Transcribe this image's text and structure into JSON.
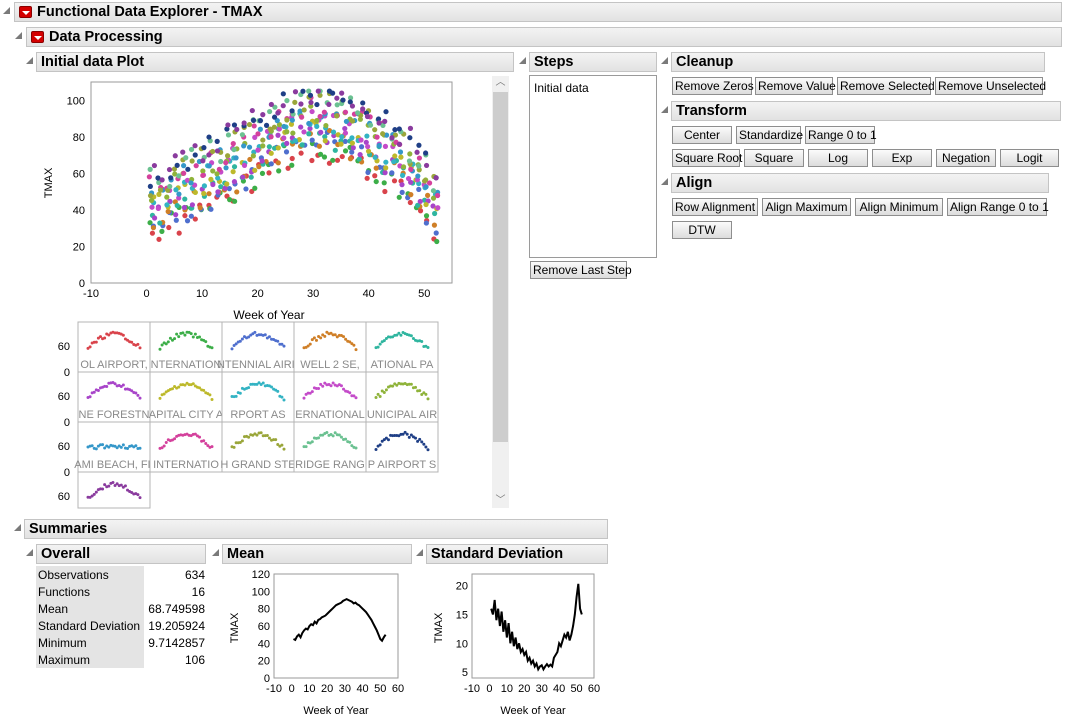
{
  "window": {
    "title": "Functional Data Explorer - TMAX"
  },
  "data_processing": {
    "title": "Data Processing"
  },
  "initial_plot": {
    "title": "Initial data Plot",
    "xlabel": "Week of Year",
    "ylabel": "TMAX",
    "x_ticks": [
      "-10",
      "0",
      "10",
      "20",
      "30",
      "40",
      "50"
    ],
    "y_ticks": [
      "0",
      "20",
      "40",
      "60",
      "80",
      "100"
    ],
    "small_tick_top": "60",
    "small_tick_bottom": "0",
    "small_panels": [
      {
        "label": "OL AIRPORT,",
        "color": "#d9434b"
      },
      {
        "label": "NTERNATION",
        "color": "#3cae48"
      },
      {
        "label": "NTENNIAL AIRP",
        "color": "#4f6fce"
      },
      {
        "label": "WELL 2 SE,",
        "color": "#cf7f27"
      },
      {
        "label": "ATIONAL PA",
        "color": "#2fb59f"
      },
      {
        "label": "NE FORESTN",
        "color": "#a844c9"
      },
      {
        "label": "APITAL CITY A",
        "color": "#bdb92b"
      },
      {
        "label": "RPORT AS",
        "color": "#33b3c3"
      },
      {
        "label": "ERNATIONAL",
        "color": "#c44bc9"
      },
      {
        "label": "UNICIPAL AIR",
        "color": "#8fb33a"
      },
      {
        "label": "AMI BEACH, FL",
        "color": "#3597c9"
      },
      {
        "label": "INTERNATIO",
        "color": "#d4419c"
      },
      {
        "label": "H GRAND STE",
        "color": "#9aa63a"
      },
      {
        "label": "RIDGE RANG",
        "color": "#6bc191"
      },
      {
        "label": "P AIRPORT S",
        "color": "#1f3f86"
      },
      {
        "label": "",
        "color": "#8a3b9e"
      }
    ]
  },
  "steps": {
    "title": "Steps",
    "items": [
      "Initial data"
    ],
    "remove_last_step": "Remove Last Step"
  },
  "cleanup": {
    "title": "Cleanup",
    "buttons": [
      "Remove Zeros",
      "Remove Value",
      "Remove Selected",
      "Remove Unselected"
    ]
  },
  "transform": {
    "title": "Transform",
    "row1": [
      "Center",
      "Standardize",
      "Range 0 to 1"
    ],
    "row2": [
      "Square Root",
      "Square",
      "Log",
      "Exp",
      "Negation",
      "Logit"
    ]
  },
  "align": {
    "title": "Align",
    "buttons": [
      "Row Alignment",
      "Align Maximum",
      "Align Minimum",
      "Align Range 0 to 1",
      "DTW"
    ]
  },
  "summaries": {
    "title": "Summaries",
    "overall": {
      "title": "Overall",
      "rows": [
        {
          "k": "Observations",
          "v": "634"
        },
        {
          "k": "Functions",
          "v": "16"
        },
        {
          "k": "Mean",
          "v": "68.749598"
        },
        {
          "k": "Standard Deviation",
          "v": "19.205924"
        },
        {
          "k": "Minimum",
          "v": "9.7142857"
        },
        {
          "k": "Maximum",
          "v": "106"
        }
      ]
    },
    "mean": {
      "title": "Mean",
      "xlabel": "Week of Year",
      "ylabel": "TMAX",
      "x_ticks": [
        "-10",
        "0",
        "10",
        "20",
        "30",
        "40",
        "50",
        "60"
      ],
      "y_ticks": [
        "0",
        "20",
        "40",
        "60",
        "80",
        "100",
        "120"
      ]
    },
    "std": {
      "title": "Standard Deviation",
      "xlabel": "Week of Year",
      "ylabel": "TMAX",
      "x_ticks": [
        "-10",
        "0",
        "10",
        "20",
        "30",
        "40",
        "50",
        "60"
      ],
      "y_ticks": [
        "5",
        "10",
        "15",
        "20"
      ]
    }
  },
  "chart_data": [
    {
      "type": "scatter",
      "xlabel": "Week of Year",
      "ylabel": "TMAX",
      "xlim": [
        -10,
        55
      ],
      "ylim": [
        0,
        110
      ],
      "series": [
        {
          "name": "",
          "x": [
            1,
            5,
            10,
            15,
            20,
            25,
            30,
            35,
            40,
            45,
            50,
            52
          ],
          "y": [
            45,
            50,
            58,
            65,
            75,
            85,
            90,
            88,
            80,
            70,
            55,
            45
          ]
        }
      ]
    },
    {
      "type": "line",
      "xlabel": "Week of Year",
      "ylabel": "TMAX",
      "xlim": [
        -10,
        60
      ],
      "ylim": [
        0,
        120
      ],
      "x": [
        1,
        2,
        3,
        4,
        5,
        6,
        7,
        8,
        9,
        10,
        11,
        12,
        13,
        14,
        15,
        16,
        17,
        18,
        19,
        20,
        21,
        22,
        23,
        24,
        25,
        26,
        27,
        28,
        29,
        30,
        31,
        32,
        33,
        34,
        35,
        36,
        37,
        38,
        39,
        40,
        41,
        42,
        43,
        44,
        45,
        46,
        47,
        48,
        49,
        50,
        51,
        52,
        53
      ],
      "values": [
        45,
        44,
        48,
        50,
        47,
        52,
        55,
        57,
        56,
        60,
        62,
        61,
        65,
        63,
        67,
        68,
        70,
        71,
        72,
        74,
        76,
        78,
        80,
        82,
        84,
        85,
        86,
        87,
        89,
        90,
        91,
        90,
        89,
        88,
        86,
        87,
        85,
        84,
        82,
        80,
        78,
        76,
        73,
        70,
        67,
        63,
        59,
        55,
        50,
        45,
        43,
        47,
        50
      ]
    },
    {
      "type": "line",
      "xlabel": "Week of Year",
      "ylabel": "TMAX",
      "xlim": [
        -10,
        60
      ],
      "ylim": [
        4,
        22
      ],
      "x": [
        1,
        2,
        3,
        4,
        5,
        6,
        7,
        8,
        9,
        10,
        11,
        12,
        13,
        14,
        15,
        16,
        17,
        18,
        19,
        20,
        21,
        22,
        23,
        24,
        25,
        26,
        27,
        28,
        29,
        30,
        31,
        32,
        33,
        34,
        35,
        36,
        37,
        38,
        39,
        40,
        41,
        42,
        43,
        44,
        45,
        46,
        47,
        48,
        49,
        50,
        51,
        52,
        53
      ],
      "values": [
        16,
        15,
        17.5,
        14,
        16,
        13,
        15.5,
        12,
        14,
        11,
        13.5,
        10,
        12,
        9.5,
        11,
        9,
        10,
        8.5,
        9,
        8,
        8.5,
        7,
        7.5,
        6.5,
        7,
        6,
        6.5,
        5.5,
        6,
        6.2,
        5.5,
        6,
        6.4,
        6,
        6.3,
        6,
        7.5,
        8,
        8.5,
        10,
        9.5,
        10.5,
        11.5,
        11,
        12,
        10.5,
        11.5,
        13,
        15,
        18,
        20.3,
        16,
        15
      ]
    }
  ]
}
